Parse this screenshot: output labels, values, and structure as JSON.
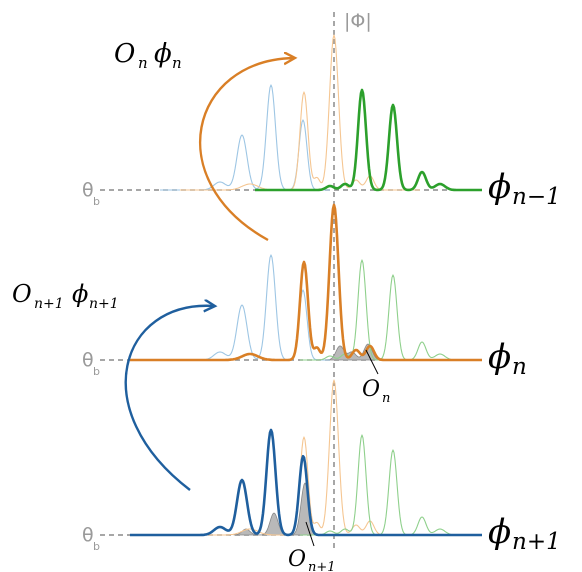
{
  "labels": {
    "phi_axis": "|Φ|",
    "theta_b": "θ",
    "theta_b_sub": "b",
    "O_n_phi_n": {
      "O": "O",
      "O_sub": "n",
      "phi": "ϕ",
      "phi_sub": "n"
    },
    "O_n1_phi_n1": {
      "O": "O",
      "O_sub": "n+1",
      "phi": "ϕ",
      "phi_sub": "n+1"
    },
    "phi_nm1": {
      "phi": "ϕ",
      "sub": "n−1"
    },
    "phi_n": {
      "phi": "ϕ",
      "sub": "n"
    },
    "phi_n1": {
      "phi": "ϕ",
      "sub": "n+1"
    },
    "O_n": {
      "O": "O",
      "sub": "n"
    },
    "O_n1": {
      "O": "O",
      "sub": "n+1"
    }
  },
  "colors": {
    "blue_light": "#9ec6e4",
    "orange_light": "#f5c692",
    "green_light": "#8fd08c",
    "green": "#2ca02c",
    "orange": "#d97f26",
    "blue": "#1f5f9e",
    "gray": "#9a9a9a",
    "fill": "#b9b9b9"
  }
}
